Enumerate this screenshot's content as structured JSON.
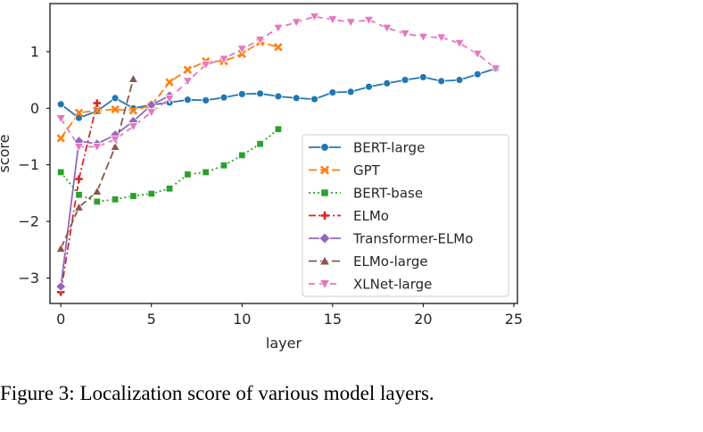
{
  "caption": "Figure 3: Localization score of various model layers.",
  "chart_data": {
    "type": "line",
    "xlabel": "layer",
    "ylabel": "score",
    "xlim": [
      -0.6,
      25.2
    ],
    "ylim": [
      -3.45,
      1.85
    ],
    "xticks": [
      0,
      5,
      10,
      15,
      20,
      25
    ],
    "yticks": [
      -3,
      -2,
      -1,
      0,
      1
    ],
    "ytick_labels": [
      "−3",
      "−2",
      "−1",
      "0",
      "1"
    ],
    "grid": false,
    "legend_position": "lower-right",
    "series": [
      {
        "name": "BERT-large",
        "color": "#1f77b4",
        "dash": "",
        "marker": "circle",
        "x": [
          0,
          1,
          2,
          3,
          4,
          5,
          6,
          7,
          8,
          9,
          10,
          11,
          12,
          13,
          14,
          15,
          16,
          17,
          18,
          19,
          20,
          21,
          22,
          23,
          24
        ],
        "y": [
          0.07,
          -0.17,
          -0.05,
          0.18,
          0.0,
          0.06,
          0.1,
          0.15,
          0.14,
          0.19,
          0.25,
          0.26,
          0.21,
          0.18,
          0.16,
          0.28,
          0.29,
          0.38,
          0.44,
          0.5,
          0.55,
          0.48,
          0.5,
          0.6,
          0.7
        ]
      },
      {
        "name": "GPT",
        "color": "#ff7f0e",
        "dash": "9,4",
        "marker": "x",
        "x": [
          0,
          1,
          2,
          3,
          4,
          5,
          6,
          7,
          8,
          9,
          10,
          11,
          12
        ],
        "y": [
          -0.53,
          -0.08,
          -0.04,
          -0.02,
          -0.04,
          0.05,
          0.46,
          0.68,
          0.83,
          0.83,
          0.96,
          1.17,
          1.08
        ]
      },
      {
        "name": "BERT-base",
        "color": "#2ca02c",
        "dash": "2,3",
        "marker": "square",
        "x": [
          0,
          1,
          2,
          3,
          4,
          5,
          6,
          7,
          8,
          9,
          10,
          11,
          12
        ],
        "y": [
          -1.13,
          -1.53,
          -1.65,
          -1.61,
          -1.55,
          -1.51,
          -1.42,
          -1.17,
          -1.13,
          -1.01,
          -0.83,
          -0.63,
          -0.37
        ]
      },
      {
        "name": "ELMo",
        "color": "#d62728",
        "dash": "8,3,2,3",
        "marker": "plus",
        "x": [
          0,
          1,
          2
        ],
        "y": [
          -3.25,
          -1.25,
          0.09
        ]
      },
      {
        "name": "Transformer-ELMo",
        "color": "#9467bd",
        "dash": "",
        "marker": "diamond",
        "x": [
          0,
          1,
          2,
          3,
          4,
          5,
          6
        ],
        "y": [
          -3.15,
          -0.58,
          -0.63,
          -0.47,
          -0.23,
          0.06,
          0.22
        ]
      },
      {
        "name": "ELMo-large",
        "color": "#8c564b",
        "dash": "9,4",
        "marker": "triangle-up",
        "x": [
          0,
          1,
          2,
          3,
          4
        ],
        "y": [
          -2.48,
          -1.75,
          -1.47,
          -0.68,
          0.52
        ]
      },
      {
        "name": "XLNet-large",
        "color": "#e377c2",
        "dash": "7,5",
        "marker": "triangle-down",
        "x": [
          0,
          1,
          2,
          3,
          4,
          5,
          6,
          7,
          8,
          9,
          10,
          11,
          12,
          13,
          14,
          15,
          16,
          17,
          18,
          19,
          20,
          21,
          22,
          23,
          24
        ],
        "y": [
          -0.18,
          -0.68,
          -0.68,
          -0.55,
          -0.32,
          -0.07,
          0.17,
          0.48,
          0.77,
          0.87,
          1.05,
          1.21,
          1.42,
          1.52,
          1.62,
          1.57,
          1.52,
          1.56,
          1.42,
          1.32,
          1.26,
          1.25,
          1.15,
          0.96,
          0.7
        ]
      }
    ]
  }
}
